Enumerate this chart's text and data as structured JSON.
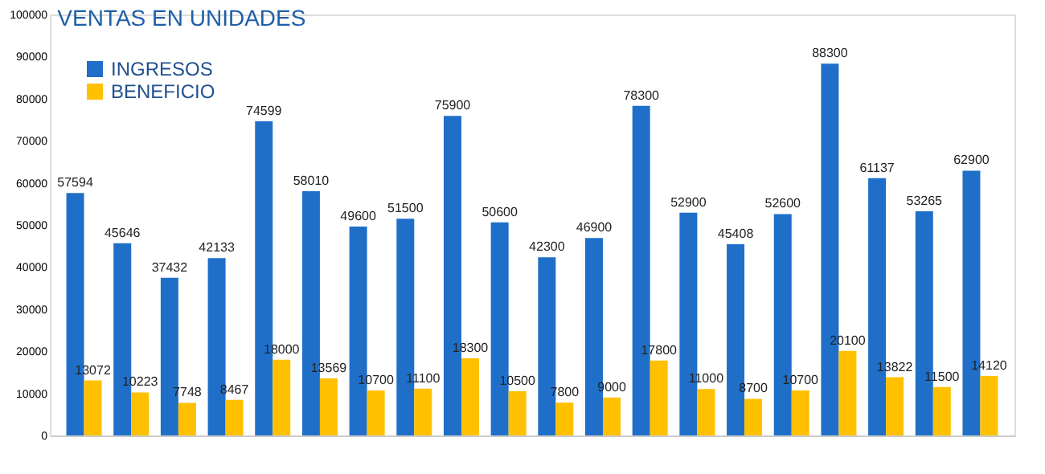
{
  "chart_data": {
    "type": "bar",
    "title": "VENTAS EN UNIDADES",
    "categories": [
      null,
      null,
      null,
      null,
      null,
      null,
      null,
      null,
      null,
      null,
      null,
      null,
      null,
      null,
      null,
      null,
      null,
      null,
      null,
      null
    ],
    "series": [
      {
        "name": "INGRESOS",
        "color": "#1f6fc9",
        "values": [
          57594,
          45646,
          37432,
          42133,
          74599,
          58010,
          49600,
          51500,
          75900,
          50600,
          42300,
          46900,
          78300,
          52900,
          45408,
          52600,
          88300,
          61137,
          53265,
          62900
        ]
      },
      {
        "name": "BENEFICIO",
        "color": "#ffc000",
        "values": [
          13072,
          10223,
          7748,
          8467,
          18000,
          13569,
          10700,
          11100,
          18300,
          10500,
          7800,
          9000,
          17800,
          11000,
          8700,
          10700,
          20100,
          13822,
          11500,
          14120
        ]
      }
    ],
    "ylim": [
      0,
      100000
    ],
    "yticks": [
      0,
      10000,
      20000,
      30000,
      40000,
      50000,
      60000,
      70000,
      80000,
      90000,
      100000
    ],
    "grid": false,
    "legend": "top left",
    "data_labels": true,
    "tick_labels": "y"
  }
}
